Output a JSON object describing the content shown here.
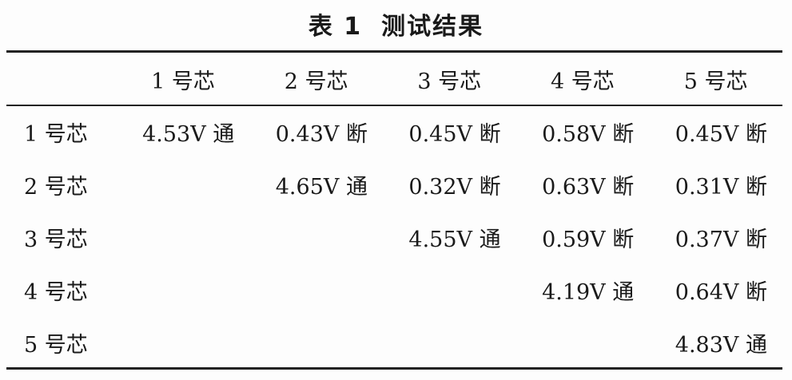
{
  "title": {
    "number": "表 1",
    "text": "测试结果"
  },
  "table": {
    "columns": [
      "",
      "1 号芯",
      "2 号芯",
      "3 号芯",
      "4 号芯",
      "5 号芯"
    ],
    "rows": [
      {
        "label": "1 号芯",
        "cells": [
          "4.53V 通",
          "0.43V 断",
          "0.45V 断",
          "0.58V 断",
          "0.45V 断"
        ]
      },
      {
        "label": "2 号芯",
        "cells": [
          "",
          "4.65V 通",
          "0.32V 断",
          "0.63V 断",
          "0.31V 断"
        ]
      },
      {
        "label": "3 号芯",
        "cells": [
          "",
          "",
          "4.55V 通",
          "0.59V 断",
          "0.37V 断"
        ]
      },
      {
        "label": "4 号芯",
        "cells": [
          "",
          "",
          "",
          "4.19V 通",
          "0.64V 断"
        ]
      },
      {
        "label": "5 号芯",
        "cells": [
          "",
          "",
          "",
          "",
          "4.83V 通"
        ]
      }
    ]
  }
}
